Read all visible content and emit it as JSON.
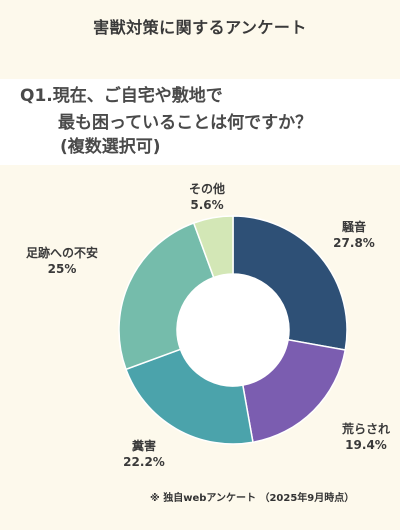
{
  "header": {
    "title": "害獣対策に関するアンケート",
    "question_line1": "Q1.現在、ご自宅や敷地で",
    "question_line2": "最も困っていることは何ですか？",
    "question_line3": "(複数選択可)"
  },
  "chart_data": {
    "type": "pie",
    "donut": true,
    "title": "",
    "categories": [
      "騒音",
      "荒らされ",
      "糞害",
      "足跡への不安",
      "その他"
    ],
    "values": [
      27.8,
      19.4,
      22.2,
      25,
      5.6
    ],
    "value_labels": [
      "27.8%",
      "19.4%",
      "22.2%",
      "25%",
      "5.6%"
    ],
    "colors": [
      "#2e5076",
      "#7b5db0",
      "#4ba3ab",
      "#75bcab",
      "#d3e7b6"
    ],
    "start": "12 o'clock, clockwise",
    "legend": "none (labels beside slices)"
  },
  "footnote": "※ 独自webアンケート （2025年9月時点）"
}
